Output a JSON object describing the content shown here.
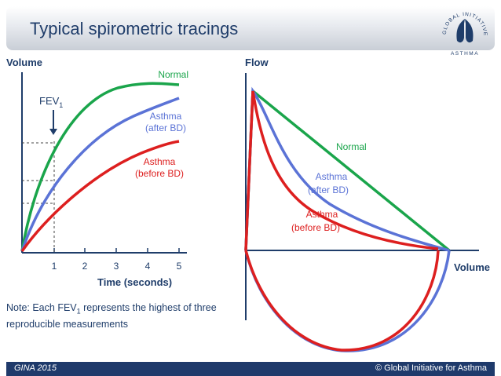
{
  "title": "Typical spirometric tracings",
  "logo": {
    "ring_text": "GLOBAL INITIATIVE FOR",
    "bottom_text": "ASTHMA"
  },
  "left_chart": {
    "y_label": "Volume",
    "x_label": "Time (seconds)",
    "ticks": [
      "1",
      "2",
      "3",
      "4",
      "5"
    ],
    "fev_label": "FEV",
    "fev_subscript": "1",
    "normal_label": "Normal",
    "after_bd_label_1": "Asthma",
    "after_bd_label_2": "(after BD)",
    "before_bd_label_1": "Asthma",
    "before_bd_label_2": "(before BD)"
  },
  "right_chart": {
    "y_label": "Flow",
    "x_label": "Volume",
    "normal_label": "Normal",
    "after_bd_label_1": "Asthma",
    "after_bd_label_2": "(after BD)",
    "before_bd_label_1": "Asthma",
    "before_bd_label_2": "(before BD)"
  },
  "note": {
    "prefix": "Note:  Each FEV",
    "subscript": "1",
    "suffix": " represents the highest of three reproducible measurements"
  },
  "footer": {
    "left": "GINA 2015",
    "right": "© Global Initiative for Asthma"
  },
  "colors": {
    "title": "#1f3d6a",
    "normal": "#1aa54b",
    "after_bd": "#5b73d6",
    "before_bd": "#dd1f1f",
    "footer": "#1f3a6b",
    "axis": "#1f3d6a"
  }
}
